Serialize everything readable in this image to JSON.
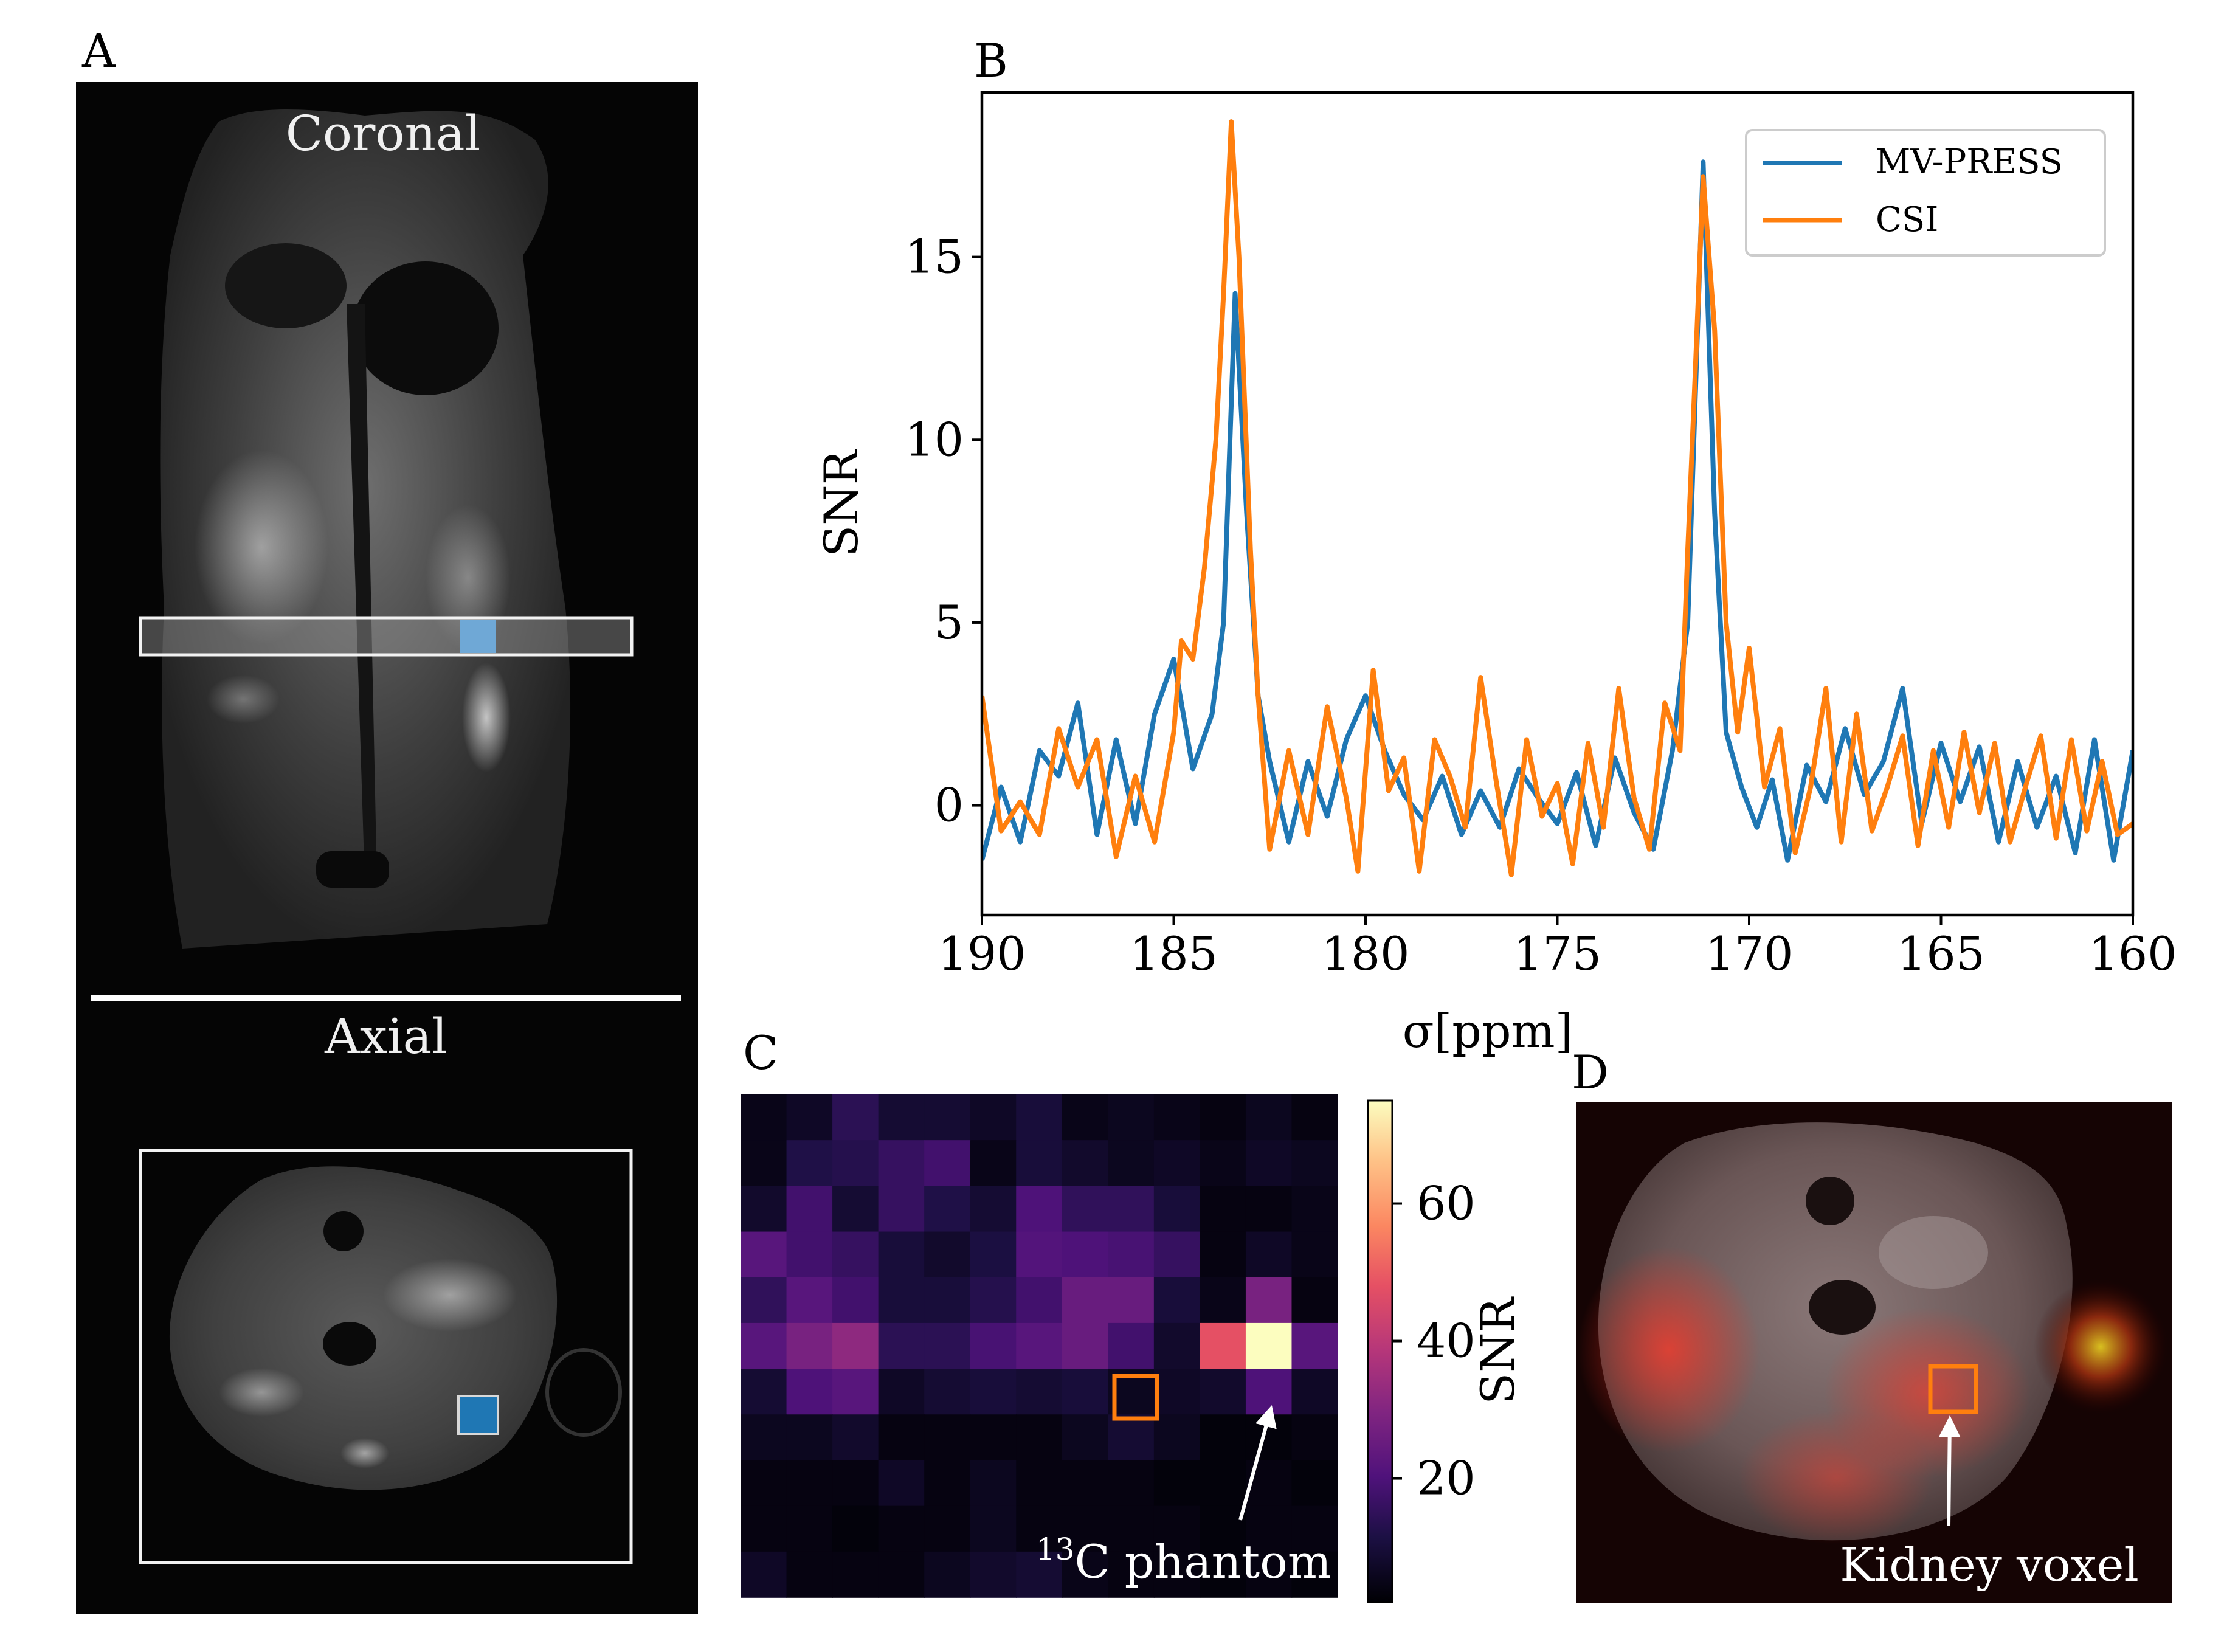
{
  "panels": {
    "a": {
      "label": "A",
      "coronal_title": "Coronal",
      "axial_title": "Axial"
    },
    "b": {
      "label": "B"
    },
    "c": {
      "label": "C",
      "annotation_sup": "13",
      "annotation_text": "C phantom"
    },
    "d": {
      "label": "D",
      "annotation_text": "Kidney voxel"
    }
  },
  "colors": {
    "mv_press": "#1f77b4",
    "csi": "#ff7f0e",
    "voxel_light": "#6fa8d6",
    "voxel_dark": "#1f77b4",
    "roi_box": "#ff7f0e"
  },
  "chart_data": [
    {
      "type": "line",
      "title": "",
      "xlabel": "σ[ppm]",
      "ylabel": "SNR",
      "xlim": [
        190,
        160
      ],
      "ylim": [
        -3,
        19.5
      ],
      "xticks": [
        190,
        185,
        180,
        175,
        170,
        165,
        160
      ],
      "yticks": [
        0,
        5,
        10,
        15
      ],
      "legend_position": "top-right",
      "series": [
        {
          "name": "MV-PRESS",
          "points": [
            [
              190,
              -1.5
            ],
            [
              189.5,
              0.5
            ],
            [
              189,
              -1
            ],
            [
              188.5,
              1.5
            ],
            [
              188,
              0.8
            ],
            [
              187.5,
              2.8
            ],
            [
              187,
              -0.8
            ],
            [
              186.5,
              1.8
            ],
            [
              186,
              -0.5
            ],
            [
              185.5,
              2.5
            ],
            [
              185,
              4
            ],
            [
              184.5,
              1
            ],
            [
              184,
              2.5
            ],
            [
              183.7,
              5
            ],
            [
              183.4,
              14
            ],
            [
              183.1,
              8
            ],
            [
              182.8,
              3
            ],
            [
              182.5,
              1.2
            ],
            [
              182,
              -1
            ],
            [
              181.5,
              1.2
            ],
            [
              181,
              -0.3
            ],
            [
              180.5,
              1.8
            ],
            [
              180,
              3
            ],
            [
              179.5,
              1.5
            ],
            [
              179,
              0.3
            ],
            [
              178.5,
              -0.4
            ],
            [
              178,
              0.8
            ],
            [
              177.5,
              -0.8
            ],
            [
              177,
              0.4
            ],
            [
              176.5,
              -0.6
            ],
            [
              176,
              1
            ],
            [
              175.5,
              0.2
            ],
            [
              175,
              -0.5
            ],
            [
              174.5,
              0.9
            ],
            [
              174,
              -1.1
            ],
            [
              173.5,
              1.3
            ],
            [
              173,
              -0.2
            ],
            [
              172.5,
              -1.2
            ],
            [
              172,
              1.5
            ],
            [
              171.6,
              5
            ],
            [
              171.2,
              17.6
            ],
            [
              170.9,
              8
            ],
            [
              170.6,
              2
            ],
            [
              170.2,
              0.5
            ],
            [
              169.8,
              -0.6
            ],
            [
              169.4,
              0.7
            ],
            [
              169,
              -1.5
            ],
            [
              168.5,
              1.1
            ],
            [
              168,
              0.1
            ],
            [
              167.5,
              2.1
            ],
            [
              167,
              0.3
            ],
            [
              166.5,
              1.2
            ],
            [
              166,
              3.2
            ],
            [
              165.5,
              -0.5
            ],
            [
              165,
              1.7
            ],
            [
              164.5,
              0.1
            ],
            [
              164,
              1.6
            ],
            [
              163.5,
              -1
            ],
            [
              163,
              1.2
            ],
            [
              162.5,
              -0.6
            ],
            [
              162,
              0.8
            ],
            [
              161.5,
              -1.3
            ],
            [
              161,
              1.8
            ],
            [
              160.5,
              -1.5
            ],
            [
              160,
              1.5
            ]
          ]
        },
        {
          "name": "CSI",
          "points": [
            [
              190,
              3
            ],
            [
              189.5,
              -0.7
            ],
            [
              189,
              0.1
            ],
            [
              188.5,
              -0.8
            ],
            [
              188,
              2.1
            ],
            [
              187.5,
              0.5
            ],
            [
              187,
              1.8
            ],
            [
              186.5,
              -1.4
            ],
            [
              186,
              0.8
            ],
            [
              185.5,
              -1
            ],
            [
              185,
              2
            ],
            [
              184.8,
              4.5
            ],
            [
              184.5,
              4
            ],
            [
              184.2,
              6.5
            ],
            [
              183.9,
              10
            ],
            [
              183.7,
              14
            ],
            [
              183.5,
              18.7
            ],
            [
              183.3,
              15
            ],
            [
              183,
              7
            ],
            [
              182.8,
              3
            ],
            [
              182.5,
              -1.2
            ],
            [
              182,
              1.5
            ],
            [
              181.5,
              -0.8
            ],
            [
              181,
              2.7
            ],
            [
              180.5,
              0.2
            ],
            [
              180.2,
              -1.8
            ],
            [
              179.8,
              3.7
            ],
            [
              179.4,
              0.4
            ],
            [
              179,
              1.3
            ],
            [
              178.6,
              -1.8
            ],
            [
              178.2,
              1.8
            ],
            [
              177.8,
              0.8
            ],
            [
              177.4,
              -0.6
            ],
            [
              177,
              3.5
            ],
            [
              176.6,
              0.7
            ],
            [
              176.2,
              -1.9
            ],
            [
              175.8,
              1.8
            ],
            [
              175.4,
              -0.3
            ],
            [
              175,
              0.6
            ],
            [
              174.6,
              -1.6
            ],
            [
              174.2,
              1.7
            ],
            [
              173.8,
              -0.6
            ],
            [
              173.4,
              3.2
            ],
            [
              173,
              0.2
            ],
            [
              172.6,
              -1.2
            ],
            [
              172.2,
              2.8
            ],
            [
              171.8,
              1.5
            ],
            [
              171.6,
              7
            ],
            [
              171.4,
              12
            ],
            [
              171.2,
              17.2
            ],
            [
              170.9,
              13
            ],
            [
              170.6,
              5
            ],
            [
              170.3,
              2
            ],
            [
              170,
              4.3
            ],
            [
              169.6,
              0.5
            ],
            [
              169.2,
              2.1
            ],
            [
              168.8,
              -1.3
            ],
            [
              168.4,
              0.5
            ],
            [
              168,
              3.2
            ],
            [
              167.6,
              -1
            ],
            [
              167.2,
              2.5
            ],
            [
              166.8,
              -0.7
            ],
            [
              166.4,
              0.5
            ],
            [
              166,
              1.9
            ],
            [
              165.6,
              -1.1
            ],
            [
              165.2,
              1.5
            ],
            [
              164.8,
              -0.6
            ],
            [
              164.4,
              2
            ],
            [
              164,
              -0.2
            ],
            [
              163.6,
              1.7
            ],
            [
              163.2,
              -1
            ],
            [
              162.8,
              0.5
            ],
            [
              162.4,
              1.9
            ],
            [
              162,
              -0.9
            ],
            [
              161.6,
              1.8
            ],
            [
              161.2,
              -0.7
            ],
            [
              160.8,
              1.2
            ],
            [
              160.4,
              -0.8
            ],
            [
              160,
              -0.5
            ]
          ]
        }
      ]
    },
    {
      "type": "heatmap",
      "title": "",
      "colorbar_label": "SNR",
      "colorbar_ticks": [
        20,
        40,
        60
      ],
      "vmin": 2,
      "vmax": 75,
      "grid": [
        [
          5,
          7,
          14,
          9,
          9,
          7,
          10,
          5,
          6,
          5,
          4,
          6,
          4
        ],
        [
          5,
          12,
          13,
          16,
          18,
          5,
          10,
          8,
          6,
          7,
          5,
          7,
          6
        ],
        [
          8,
          18,
          9,
          16,
          12,
          9,
          20,
          15,
          15,
          10,
          4,
          4,
          5
        ],
        [
          22,
          18,
          16,
          10,
          8,
          11,
          21,
          20,
          19,
          16,
          4,
          7,
          5
        ],
        [
          15,
          22,
          18,
          10,
          10,
          13,
          18,
          25,
          25,
          10,
          5,
          28,
          4
        ],
        [
          22,
          28,
          32,
          14,
          14,
          19,
          22,
          25,
          18,
          8,
          48,
          75,
          22
        ],
        [
          9,
          20,
          22,
          7,
          9,
          10,
          9,
          10,
          6,
          7,
          8,
          20,
          7
        ],
        [
          6,
          6,
          8,
          4,
          4,
          4,
          4,
          6,
          9,
          6,
          3,
          3,
          4
        ],
        [
          4,
          4,
          4,
          7,
          4,
          6,
          4,
          4,
          4,
          3,
          3,
          4,
          3
        ],
        [
          4,
          4,
          3,
          4,
          4,
          6,
          4,
          4,
          4,
          4,
          3,
          4,
          4
        ],
        [
          7,
          4,
          4,
          4,
          6,
          8,
          9,
          5,
          4,
          4,
          3,
          4,
          3
        ]
      ]
    }
  ]
}
